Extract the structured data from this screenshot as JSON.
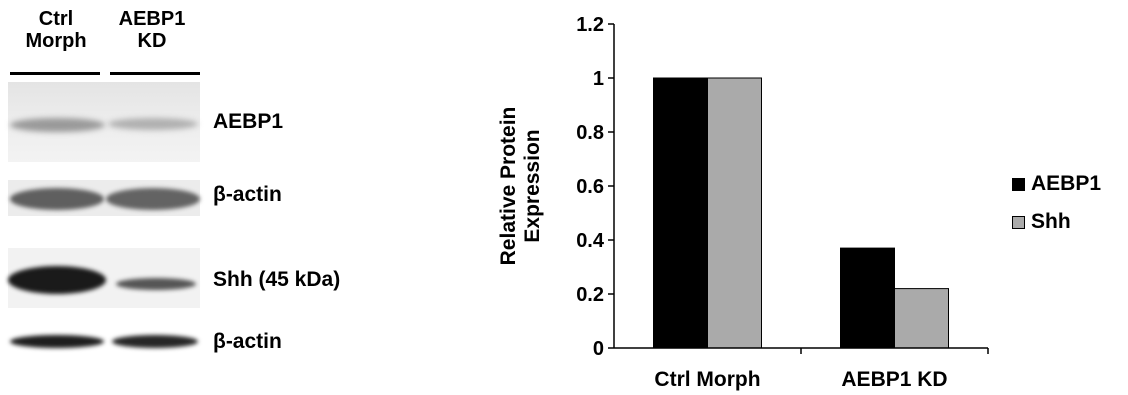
{
  "blot": {
    "lane_headers": [
      "Ctrl\nMorph",
      "AEBP1\nKD"
    ],
    "rows": [
      "AEBP1",
      "β-actin",
      "Shh (45 kDa)",
      "β-actin"
    ]
  },
  "chart_data": {
    "type": "bar",
    "categories": [
      "Ctrl Morph",
      "AEBP1 KD"
    ],
    "series": [
      {
        "name": "AEBP1",
        "values": [
          1.0,
          0.37
        ],
        "color": "#000000"
      },
      {
        "name": "Shh",
        "values": [
          1.0,
          0.22
        ],
        "color": "#aaaaaa"
      }
    ],
    "title": "",
    "xlabel": "",
    "ylabel": "Relative Protein\nExpression",
    "ylim": [
      0,
      1.2
    ],
    "yticks": [
      "0",
      "0.2",
      "0.4",
      "0.6",
      "0.8",
      "1",
      "1.2"
    ],
    "grid": false,
    "legend": "right"
  }
}
